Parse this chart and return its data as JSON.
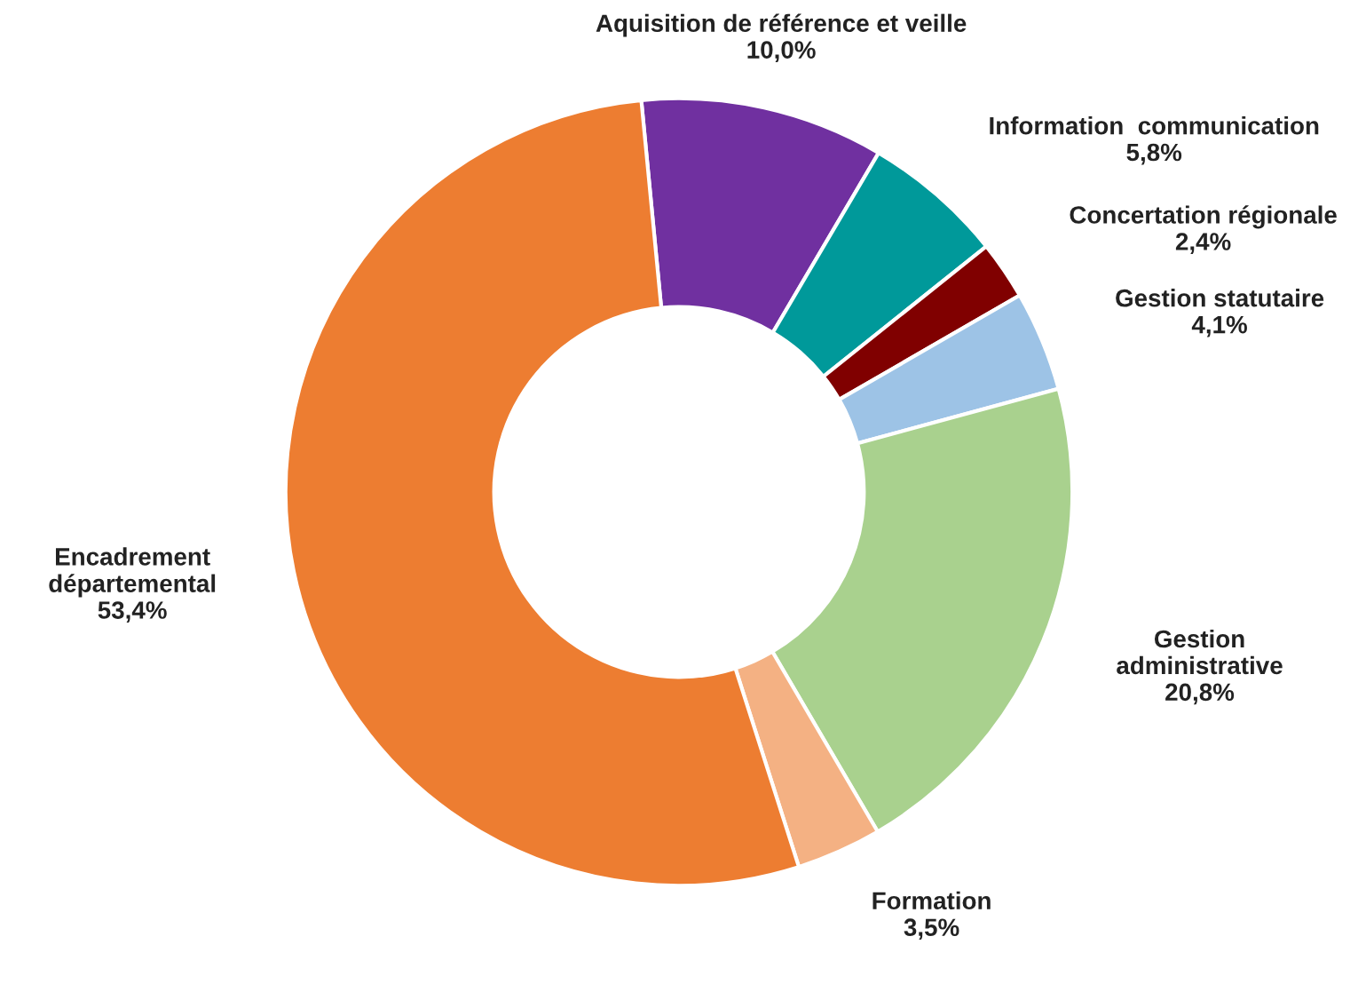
{
  "chart_data": {
    "type": "donut",
    "categories": [
      "Aquisition de référence et veille",
      "Information  communication",
      "Concertation régionale",
      "Gestion statutaire",
      "Gestion\nadministrative",
      "Formation",
      "Encadrement\ndépartemental"
    ],
    "values": [
      10.0,
      5.8,
      2.4,
      4.1,
      20.8,
      3.5,
      53.4
    ],
    "value_labels": [
      "10,0%",
      "5,8%",
      "2,4%",
      "4,1%",
      "20,8%",
      "3,5%",
      "53,4%"
    ],
    "colors": [
      "#7030a0",
      "#00999a",
      "#800000",
      "#9dc3e6",
      "#a9d18e",
      "#f4b183",
      "#ed7d31"
    ],
    "legend": false
  }
}
